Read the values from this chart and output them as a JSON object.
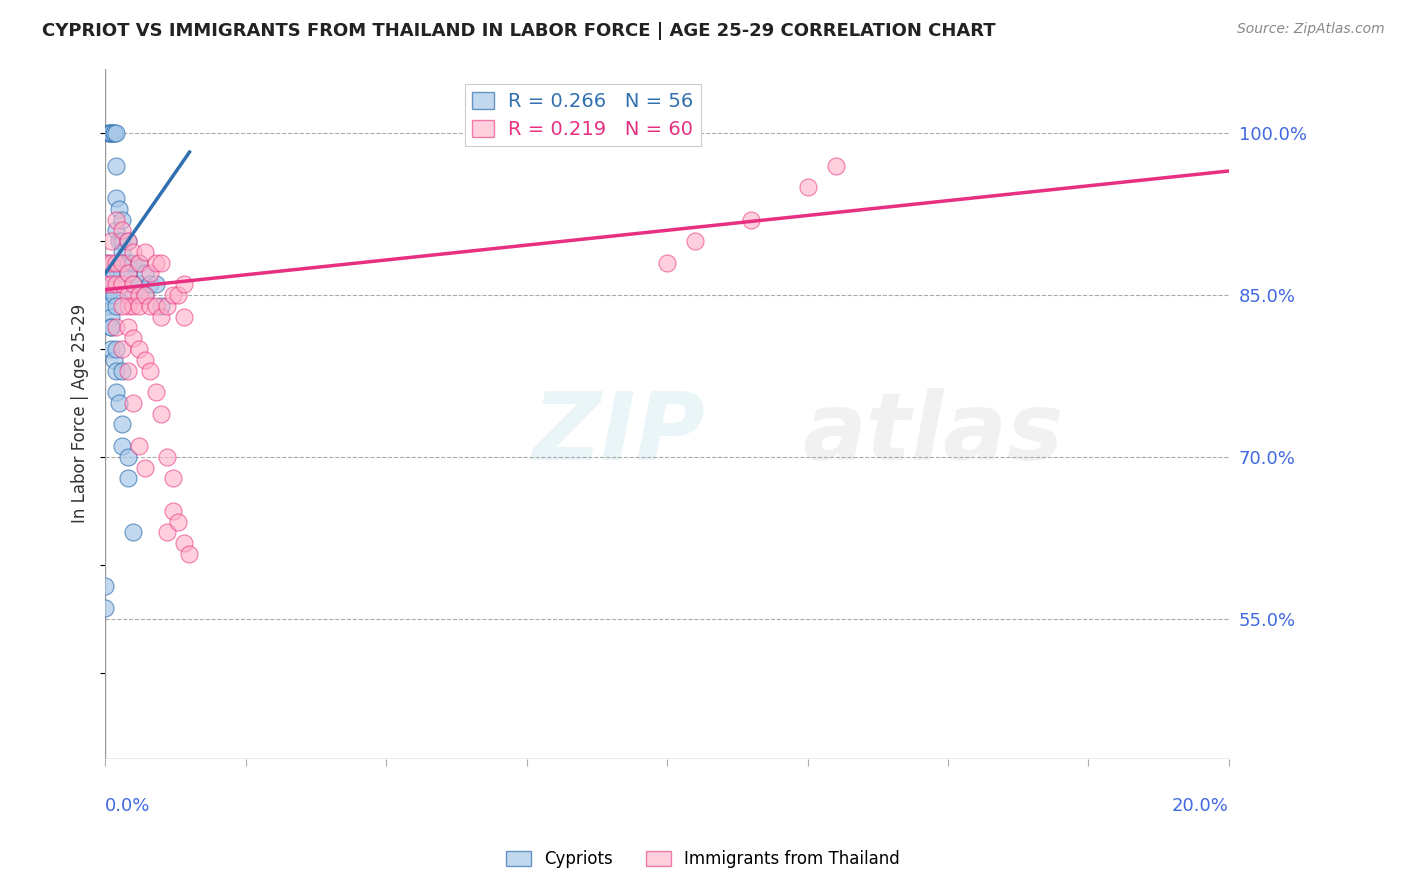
{
  "title": "CYPRIOT VS IMMIGRANTS FROM THAILAND IN LABOR FORCE | AGE 25-29 CORRELATION CHART",
  "source": "Source: ZipAtlas.com",
  "ylabel": "In Labor Force | Age 25-29",
  "legend_label1": "Cypriots",
  "legend_label2": "Immigrants from Thailand",
  "R1": 0.266,
  "N1": 56,
  "R2": 0.219,
  "N2": 60,
  "color_blue": "#a8c8e8",
  "color_pink": "#ffb0c8",
  "color_blue_line": "#3070b0",
  "color_pink_line": "#e83080",
  "color_axis_labels": "#4169e1",
  "xlim": [
    0.0,
    0.2
  ],
  "ylim": [
    0.42,
    1.06
  ],
  "ytick_positions": [
    0.55,
    0.7,
    0.85,
    1.0
  ],
  "ytick_labels": [
    "55.0%",
    "70.0%",
    "85.0%",
    "100.0%"
  ],
  "blue_x": [
    0.0005,
    0.0008,
    0.001,
    0.001,
    0.0015,
    0.0015,
    0.002,
    0.002,
    0.002,
    0.002,
    0.0025,
    0.0025,
    0.003,
    0.003,
    0.003,
    0.003,
    0.003,
    0.004,
    0.004,
    0.004,
    0.005,
    0.005,
    0.005,
    0.006,
    0.006,
    0.007,
    0.007,
    0.008,
    0.009,
    0.01,
    0.0,
    0.0,
    0.0,
    0.0005,
    0.0005,
    0.001,
    0.001,
    0.001,
    0.0015,
    0.002,
    0.002,
    0.0025,
    0.003,
    0.003,
    0.004,
    0.004,
    0.005,
    0.001,
    0.002,
    0.003,
    0.0,
    0.0,
    0.0005,
    0.001,
    0.0015,
    0.002
  ],
  "blue_y": [
    1.0,
    1.0,
    1.0,
    1.0,
    1.0,
    1.0,
    1.0,
    0.97,
    0.94,
    0.91,
    0.93,
    0.9,
    0.92,
    0.9,
    0.89,
    0.88,
    0.87,
    0.9,
    0.88,
    0.87,
    0.88,
    0.86,
    0.85,
    0.88,
    0.86,
    0.87,
    0.85,
    0.86,
    0.86,
    0.84,
    0.87,
    0.86,
    0.85,
    0.85,
    0.84,
    0.83,
    0.82,
    0.8,
    0.79,
    0.78,
    0.76,
    0.75,
    0.73,
    0.71,
    0.7,
    0.68,
    0.63,
    0.82,
    0.8,
    0.78,
    0.58,
    0.56,
    0.88,
    0.87,
    0.85,
    0.84
  ],
  "pink_x": [
    0.0,
    0.0,
    0.001,
    0.001,
    0.001,
    0.002,
    0.002,
    0.002,
    0.003,
    0.003,
    0.003,
    0.004,
    0.004,
    0.004,
    0.004,
    0.005,
    0.005,
    0.005,
    0.006,
    0.006,
    0.006,
    0.007,
    0.007,
    0.008,
    0.008,
    0.009,
    0.009,
    0.01,
    0.01,
    0.011,
    0.012,
    0.013,
    0.014,
    0.014,
    0.002,
    0.003,
    0.004,
    0.005,
    0.006,
    0.007,
    0.003,
    0.004,
    0.005,
    0.006,
    0.007,
    0.008,
    0.009,
    0.01,
    0.011,
    0.012,
    0.013,
    0.014,
    0.015,
    0.011,
    0.012,
    0.13,
    0.125,
    0.115,
    0.105,
    0.1
  ],
  "pink_y": [
    0.88,
    0.86,
    0.9,
    0.88,
    0.86,
    0.92,
    0.88,
    0.86,
    0.91,
    0.88,
    0.86,
    0.9,
    0.87,
    0.85,
    0.84,
    0.89,
    0.86,
    0.84,
    0.88,
    0.85,
    0.84,
    0.89,
    0.85,
    0.87,
    0.84,
    0.88,
    0.84,
    0.88,
    0.83,
    0.84,
    0.85,
    0.85,
    0.86,
    0.83,
    0.82,
    0.8,
    0.78,
    0.75,
    0.71,
    0.69,
    0.84,
    0.82,
    0.81,
    0.8,
    0.79,
    0.78,
    0.76,
    0.74,
    0.63,
    0.65,
    0.64,
    0.62,
    0.61,
    0.7,
    0.68,
    0.97,
    0.95,
    0.92,
    0.9,
    0.88
  ]
}
